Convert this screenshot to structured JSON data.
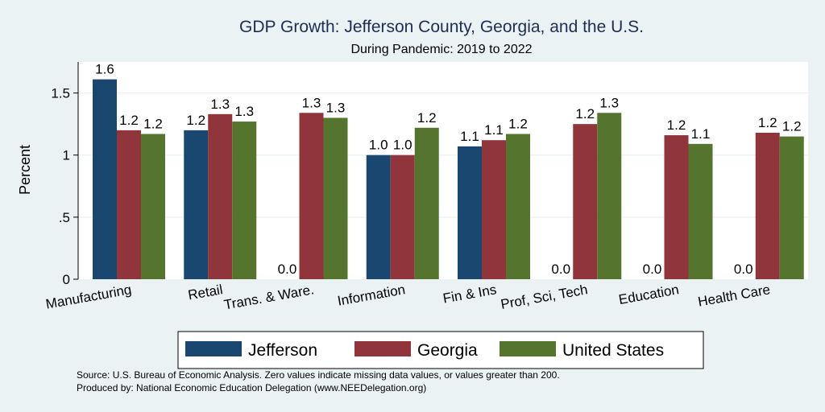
{
  "chart_data": {
    "type": "bar",
    "title": "GDP Growth: Jefferson County, Georgia, and the U.S.",
    "subtitle": "During Pandemic: 2019 to 2022",
    "ylabel": "Percent",
    "xlabel": "",
    "ylim": [
      0,
      1.75
    ],
    "yticks": [
      0,
      0.5,
      1,
      1.5
    ],
    "ytick_labels": [
      "0",
      ".5",
      "1",
      "1.5"
    ],
    "grid": true,
    "legend_position": "bottom",
    "categories": [
      "Manufacturing",
      "Retail",
      "Trans. & Ware.",
      "Information",
      "Fin & Ins",
      "Prof, Sci, Tech",
      "Education",
      "Health Care"
    ],
    "series": [
      {
        "name": "Jefferson",
        "color": "#1a476f",
        "values": [
          1.61,
          1.2,
          0,
          1.0,
          1.07,
          0,
          0,
          0
        ],
        "labels": [
          "1.6",
          "1.2",
          "0.0",
          "1.0",
          "1.1",
          "0.0",
          "0.0",
          "0.0"
        ]
      },
      {
        "name": "Georgia",
        "color": "#90353b",
        "values": [
          1.2,
          1.33,
          1.34,
          1.0,
          1.12,
          1.25,
          1.16,
          1.18
        ],
        "labels": [
          "1.2",
          "1.3",
          "1.3",
          "1.0",
          "1.1",
          "1.2",
          "1.2",
          "1.2"
        ]
      },
      {
        "name": "United States",
        "color": "#55752f",
        "values": [
          1.17,
          1.27,
          1.3,
          1.22,
          1.17,
          1.34,
          1.09,
          1.15
        ],
        "labels": [
          "1.2",
          "1.3",
          "1.3",
          "1.2",
          "1.2",
          "1.3",
          "1.1",
          "1.2"
        ]
      }
    ]
  },
  "footer": {
    "source": "Source: U.S. Bureau of Economic Analysis. Zero values indicate missing data values, or values greater than 200.",
    "produced_by": "Produced by: National Economic Education Delegation (www.NEEDelegation.org)"
  }
}
